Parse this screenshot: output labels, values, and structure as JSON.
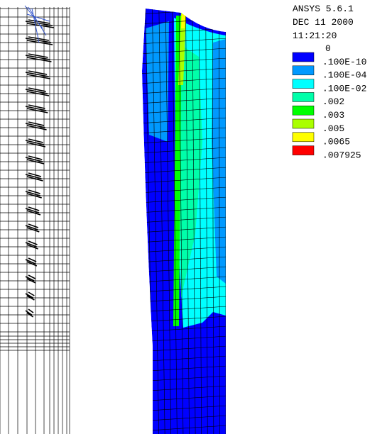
{
  "header": {
    "program": "ANSYS 5.6.1",
    "date": "DEC 11 2000",
    "time": "11:21:20"
  },
  "legend": {
    "levels": [
      "0",
      ".100E-10",
      ".100E-04",
      ".100E-02",
      ".002",
      ".003",
      ".005",
      ".0065",
      ".007925"
    ],
    "colors": [
      "#0000ff",
      "#0099ff",
      "#00ffff",
      "#00ffaa",
      "#00ff00",
      "#aaff00",
      "#ffff00",
      "#ff0000"
    ]
  }
}
